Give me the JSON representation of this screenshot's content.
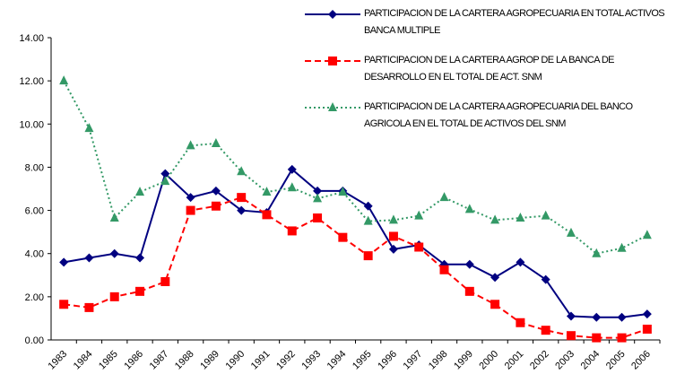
{
  "chart_data": {
    "type": "line",
    "categories": [
      "1983",
      "1984",
      "1985",
      "1986",
      "1987",
      "1988",
      "1989",
      "1990",
      "1991",
      "1992",
      "1993",
      "1994",
      "1995",
      "1996",
      "1997",
      "1998",
      "1999",
      "2000",
      "2001",
      "2002",
      "2003",
      "2004",
      "2005",
      "2006"
    ],
    "series": [
      {
        "name": "PARTICIPACION DE LA CARTERA AGROPECUARIA EN TOTAL ACTIVOS BANCA MULTIPLE",
        "color": "#000080",
        "style": "solid",
        "marker": "diamond",
        "values": [
          3.6,
          3.8,
          4.0,
          3.8,
          7.7,
          6.6,
          6.9,
          6.0,
          5.9,
          7.9,
          6.9,
          6.9,
          6.2,
          4.2,
          4.4,
          3.5,
          3.5,
          2.9,
          3.6,
          2.8,
          1.1,
          1.05,
          1.05,
          1.2
        ]
      },
      {
        "name": "PARTICIPACION DE LA CARTERA AGROP DE LA BANCA DE DESARROLLO EN EL TOTAL DE ACT. SNM",
        "color": "#ff0000",
        "style": "dashed",
        "marker": "square",
        "values": [
          1.65,
          1.5,
          2.0,
          2.25,
          2.7,
          6.0,
          6.2,
          6.6,
          5.8,
          5.05,
          5.65,
          4.75,
          3.9,
          4.8,
          4.3,
          3.25,
          2.25,
          1.65,
          0.8,
          0.45,
          0.2,
          0.1,
          0.1,
          0.5
        ]
      },
      {
        "name": "PARTICIPACION DE LA CARTERA AGROPECUARIA DEL BANCO AGRICOLA EN EL TOTAL DE ACTIVOS DEL SNM",
        "color": "#339966",
        "style": "dotted",
        "marker": "triangle",
        "values": [
          12.0,
          9.8,
          5.65,
          6.85,
          7.35,
          9.0,
          9.1,
          7.8,
          6.85,
          7.05,
          6.55,
          6.85,
          5.5,
          5.55,
          5.75,
          6.6,
          6.05,
          5.55,
          5.65,
          5.75,
          4.95,
          4.0,
          4.25,
          4.85
        ]
      }
    ],
    "ylim": [
      0,
      14
    ],
    "yticks": [
      {
        "value": 0,
        "label": "0.00"
      },
      {
        "value": 2,
        "label": "2.00"
      },
      {
        "value": 4,
        "label": "4.00"
      },
      {
        "value": 6,
        "label": "6.00"
      },
      {
        "value": 8,
        "label": "8.00"
      },
      {
        "value": 10,
        "label": "10.00"
      },
      {
        "value": 12,
        "label": "12.00"
      },
      {
        "value": 14,
        "label": "14.00"
      }
    ],
    "grid": false
  }
}
